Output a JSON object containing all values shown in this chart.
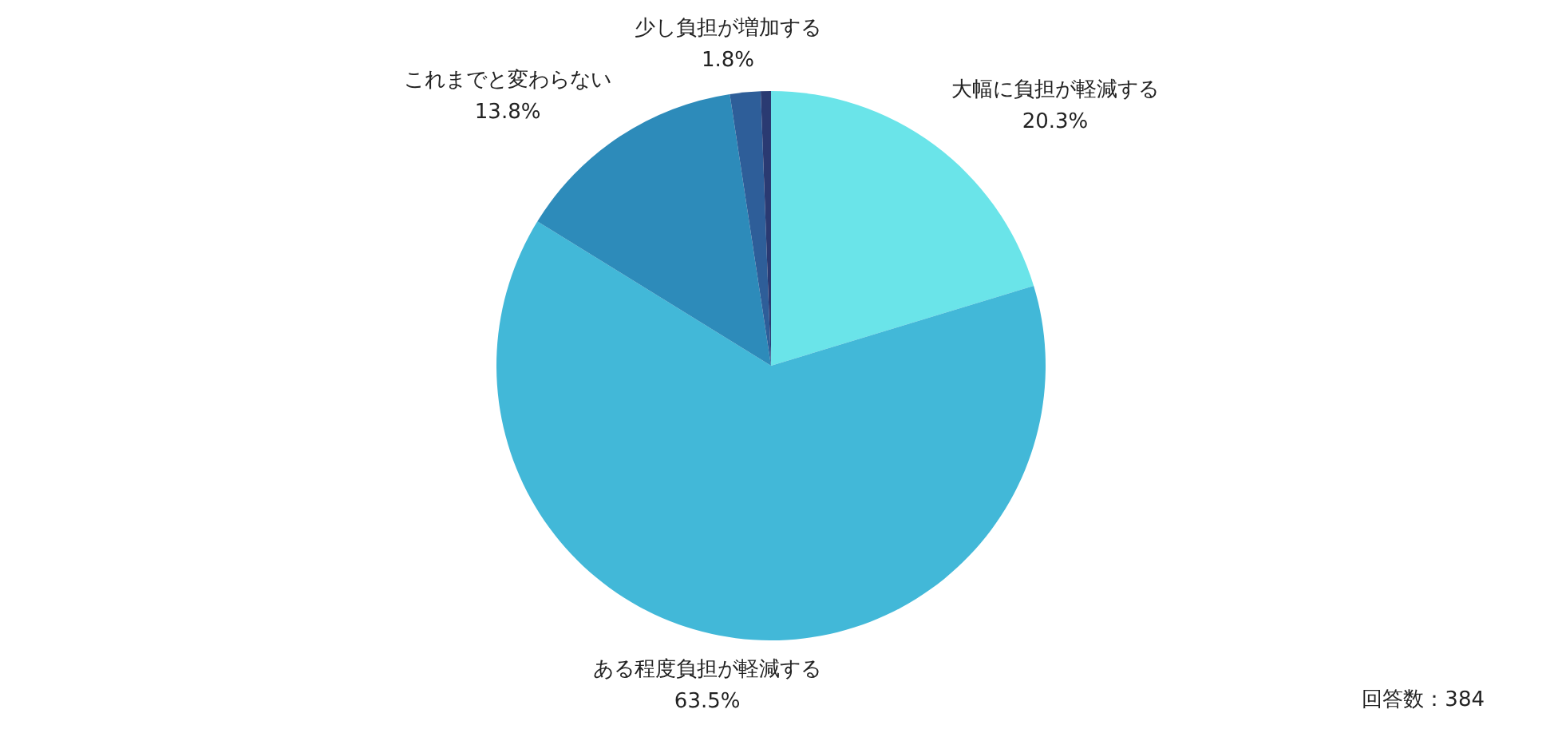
{
  "chart_data": {
    "type": "pie",
    "categories": [
      "大幅に負担が軽減する",
      "ある程度負担が軽減する",
      "これまでと変わらない",
      "少し負担が増加する",
      null
    ],
    "values": [
      20.3,
      63.5,
      13.8,
      1.8,
      0.6
    ],
    "value_labels": [
      "20.3%",
      "63.5%",
      "13.8%",
      "1.8%",
      null
    ],
    "colors": [
      "#6ae4e9",
      "#42b8d8",
      "#2d8bba",
      "#2e5e99",
      "#2a3a72"
    ],
    "annotations": [
      "回答数：384"
    ]
  }
}
